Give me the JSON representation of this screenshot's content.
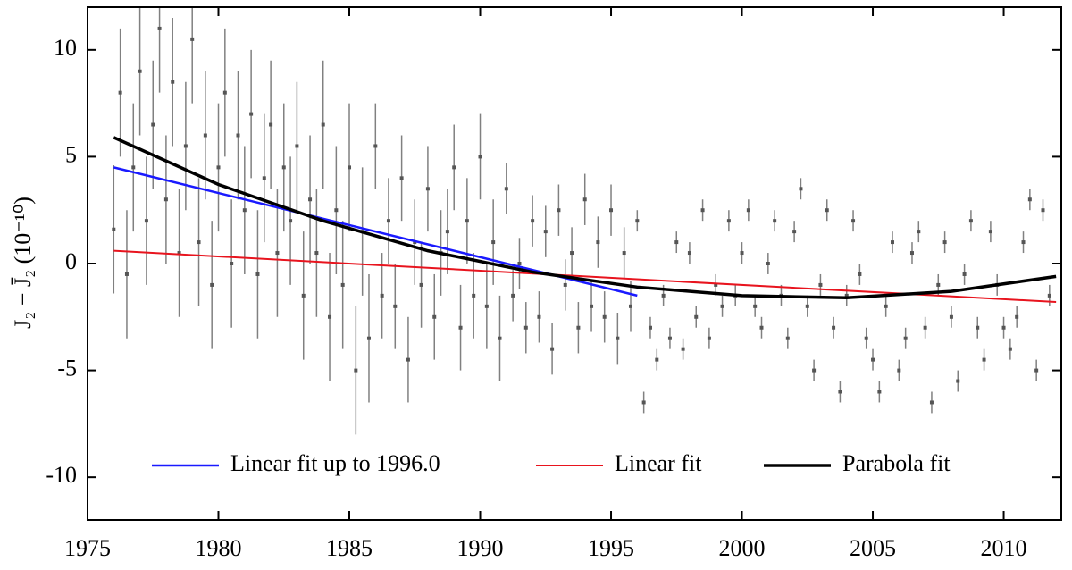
{
  "chart_data": {
    "type": "errorbar",
    "y_label": "J₂ − J̄₂  (10⁻¹⁰)",
    "xlim": [
      1975,
      2012.2
    ],
    "ylim": [
      -12,
      12
    ],
    "xticks": [
      1975,
      1980,
      1985,
      1990,
      1995,
      2000,
      2005,
      2010
    ],
    "yticks": [
      -10,
      -5,
      0,
      5,
      10
    ],
    "legend": "bottom",
    "points": {
      "color": "#555555",
      "x": [
        1976,
        1976.25,
        1976.5,
        1976.75,
        1977,
        1977.25,
        1977.5,
        1977.75,
        1978,
        1978.25,
        1978.5,
        1978.75,
        1979,
        1979.25,
        1979.5,
        1979.75,
        1980,
        1980.25,
        1980.5,
        1980.75,
        1981,
        1981.25,
        1981.5,
        1981.75,
        1982,
        1982.25,
        1982.5,
        1982.75,
        1983,
        1983.25,
        1983.5,
        1983.75,
        1984,
        1984.25,
        1984.5,
        1984.75,
        1985,
        1985.25,
        1985.5,
        1985.75,
        1986,
        1986.25,
        1986.5,
        1986.75,
        1987,
        1987.25,
        1987.5,
        1987.75,
        1988,
        1988.25,
        1988.5,
        1988.75,
        1989,
        1989.25,
        1989.5,
        1989.75,
        1990,
        1990.25,
        1990.5,
        1990.75,
        1991,
        1991.25,
        1991.5,
        1991.75,
        1992,
        1992.25,
        1992.5,
        1992.75,
        1993,
        1993.25,
        1993.5,
        1993.75,
        1994,
        1994.25,
        1994.5,
        1994.75,
        1995,
        1995.25,
        1995.5,
        1995.75,
        1996,
        1996.25,
        1996.5,
        1996.75,
        1997,
        1997.25,
        1997.5,
        1997.75,
        1998,
        1998.25,
        1998.5,
        1998.75,
        1999,
        1999.25,
        1999.5,
        1999.75,
        2000,
        2000.25,
        2000.5,
        2000.75,
        2001,
        2001.25,
        2001.5,
        2001.75,
        2002,
        2002.25,
        2002.5,
        2002.75,
        2003,
        2003.25,
        2003.5,
        2003.75,
        2004,
        2004.25,
        2004.5,
        2004.75,
        2005,
        2005.25,
        2005.5,
        2005.75,
        2006,
        2006.25,
        2006.5,
        2006.75,
        2007,
        2007.25,
        2007.5,
        2007.75,
        2008,
        2008.25,
        2008.5,
        2008.75,
        2009,
        2009.25,
        2009.5,
        2009.75,
        2010,
        2010.25,
        2010.5,
        2010.75,
        2011,
        2011.25,
        2011.5,
        2011.75
      ],
      "values": [
        1.6,
        8.0,
        -0.5,
        4.5,
        9.0,
        2.0,
        6.5,
        11.0,
        3.0,
        8.5,
        0.5,
        5.5,
        10.5,
        1.0,
        6.0,
        -1.0,
        4.5,
        8.0,
        0.0,
        6.0,
        2.5,
        7.0,
        -0.5,
        4.0,
        6.5,
        0.5,
        4.5,
        2.0,
        5.5,
        -1.5,
        3.0,
        0.5,
        6.5,
        -2.5,
        2.5,
        -1.0,
        4.5,
        -5.0,
        1.5,
        -3.5,
        5.5,
        -1.5,
        2.0,
        -2.0,
        4.0,
        -4.5,
        1.0,
        -1.0,
        3.5,
        -2.5,
        0.5,
        1.5,
        4.5,
        -3.0,
        2.0,
        -1.5,
        5.0,
        -2.0,
        1.0,
        -3.5,
        3.5,
        -1.5,
        0.0,
        -3.0,
        2.0,
        -2.5,
        1.5,
        -4.0,
        2.5,
        -1.0,
        0.5,
        -3.0,
        3.0,
        -2.0,
        1.0,
        -2.5,
        2.5,
        -3.5,
        0.5,
        -2.0,
        2.0,
        -6.5,
        -3.0,
        -4.5,
        -1.5,
        -3.5,
        1.0,
        -4.0,
        0.5,
        -2.5,
        2.5,
        -3.5,
        -1.0,
        -2.0,
        2.0,
        -1.5,
        0.5,
        2.5,
        -2.0,
        -3.0,
        0.0,
        2.0,
        -1.5,
        -3.5,
        1.5,
        3.5,
        -2.0,
        -5.0,
        -1.0,
        2.5,
        -3.0,
        -6.0,
        -1.5,
        2.0,
        -0.5,
        -3.5,
        -4.5,
        -6.0,
        -2.0,
        1.0,
        -5.0,
        -3.5,
        0.5,
        1.5,
        -3.0,
        -6.5,
        -1.0,
        1.0,
        -2.5,
        -5.5,
        -0.5,
        2.0,
        -3.0,
        -4.5,
        1.5,
        -1.0,
        -3.0,
        -4.0,
        -2.5,
        1.0,
        3.0,
        -5.0,
        2.5,
        -1.5
      ],
      "errors": [
        3,
        3,
        3,
        3,
        3,
        3,
        3,
        3,
        3,
        3,
        3,
        3,
        3,
        3,
        3,
        3,
        3,
        3,
        3,
        3,
        3,
        3,
        3,
        3,
        3,
        3,
        3,
        3,
        3,
        3,
        3,
        3,
        3,
        3,
        3,
        3,
        3,
        3,
        3,
        3,
        2,
        2,
        2,
        2,
        2,
        2,
        2,
        2,
        2,
        2,
        2,
        2,
        2,
        2,
        2,
        2,
        2,
        2,
        2,
        2,
        1.2,
        1.2,
        1.2,
        1.2,
        1.2,
        1.2,
        1.2,
        1.2,
        1.2,
        1.2,
        1.2,
        1.2,
        1.2,
        1.2,
        1.2,
        1.2,
        1.2,
        1.2,
        1.2,
        1.2,
        0.5,
        0.5,
        0.5,
        0.5,
        0.5,
        0.5,
        0.5,
        0.5,
        0.5,
        0.5,
        0.5,
        0.5,
        0.5,
        0.5,
        0.5,
        0.5,
        0.5,
        0.5,
        0.5,
        0.5,
        0.5,
        0.5,
        0.5,
        0.5,
        0.5,
        0.5,
        0.5,
        0.5,
        0.5,
        0.5,
        0.5,
        0.5,
        0.5,
        0.5,
        0.5,
        0.5,
        0.5,
        0.5,
        0.5,
        0.5,
        0.5,
        0.5,
        0.5,
        0.5,
        0.5,
        0.5,
        0.5,
        0.5,
        0.5,
        0.5,
        0.5,
        0.5,
        0.5,
        0.5,
        0.5,
        0.5,
        0.5,
        0.5,
        0.5,
        0.5,
        0.5,
        0.5,
        0.5,
        0.5
      ]
    },
    "series": [
      {
        "name": "Linear fit up to 1996.0",
        "color": "#1a1aff",
        "x": [
          1976,
          1996
        ],
        "values": [
          4.5,
          -1.5
        ]
      },
      {
        "name": "Linear fit",
        "color": "#e8141e",
        "x": [
          1976,
          2012
        ],
        "values": [
          0.6,
          -1.8
        ]
      },
      {
        "name": "Parabola fit",
        "color": "#000000",
        "x": [
          1976,
          1980,
          1984,
          1988,
          1992,
          1996,
          2000,
          2004,
          2008,
          2012
        ],
        "values": [
          5.9,
          3.7,
          2.0,
          0.6,
          -0.4,
          -1.1,
          -1.5,
          -1.6,
          -1.3,
          -0.6
        ]
      }
    ]
  }
}
